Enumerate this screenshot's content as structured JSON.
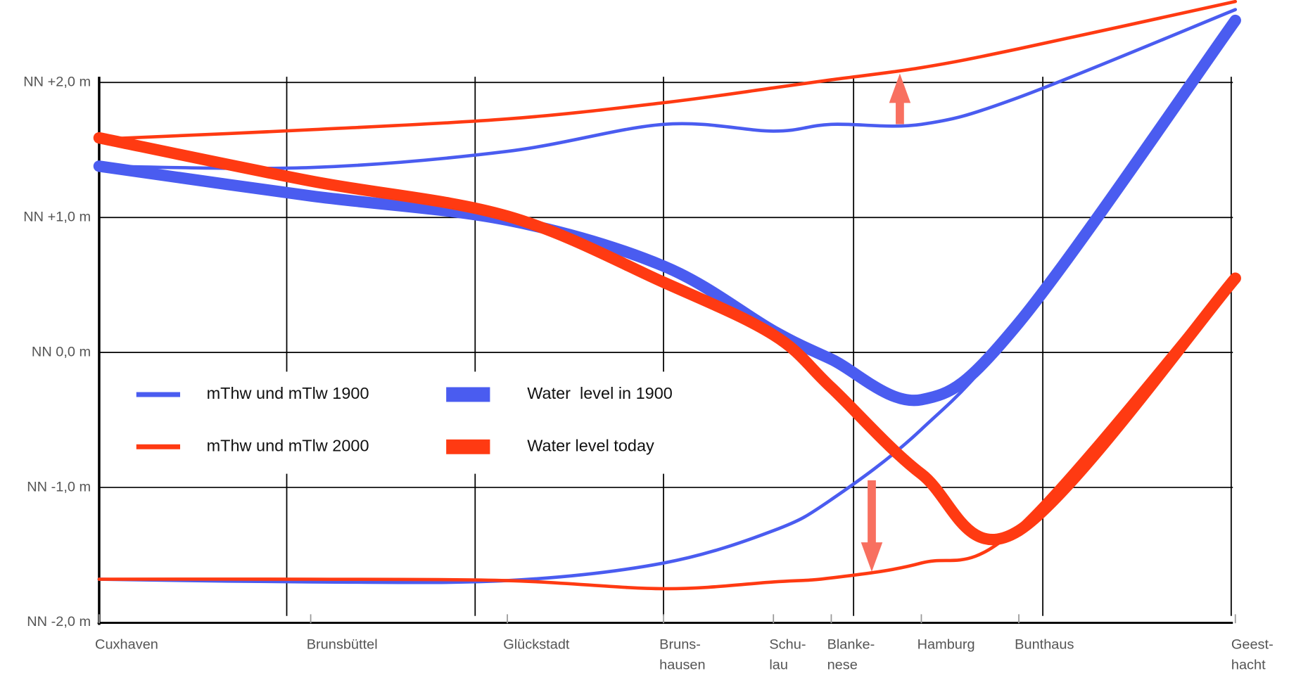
{
  "chart_data": {
    "type": "line",
    "categories": [
      "Cuxhaven",
      "Brunsbüttel",
      "Glückstadt",
      "Bruns-\nhausen",
      "Schu-\nlau",
      "Blanke-\nnese",
      "Hamburg",
      "Bunthaus",
      "Geest-\nhacht"
    ],
    "ylim": [
      -2,
      2
    ],
    "yticks": [
      {
        "value": -2,
        "label": "NN -2,0 m"
      },
      {
        "value": -1,
        "label": "NN -1,0 m"
      },
      {
        "value": 0,
        "label": "NN 0,0 m"
      },
      {
        "value": 1,
        "label": "NN +1,0 m"
      },
      {
        "value": 2,
        "label": "NN +2,0 m"
      }
    ],
    "grid": true,
    "series": [
      {
        "name": "mThw und mTlw 1900",
        "color": "#4a5cf0",
        "values": [
          1.38,
          1.37,
          1.49,
          1.69,
          1.64,
          1.69,
          1.69,
          1.89,
          2.54
        ],
        "low_values": [
          -1.68,
          -1.7,
          -1.69,
          -1.56,
          -1.32,
          -1.09,
          -0.57,
          0.22,
          2.49
        ]
      },
      {
        "name": "mThw und mTlw 2000",
        "color": "#ff3a12",
        "values": [
          1.58,
          1.65,
          1.73,
          1.85,
          1.96,
          2.02,
          2.11,
          2.25,
          2.6
        ],
        "low_values": [
          -1.68,
          -1.68,
          -1.69,
          -1.75,
          -1.7,
          -1.67,
          -1.56,
          -1.29,
          0.58
        ]
      },
      {
        "name": "Water  level in 1900",
        "color": "#4a5cf0",
        "thick": true,
        "values": [
          1.38,
          1.16,
          0.98,
          0.64,
          0.16,
          -0.05,
          -0.35,
          0.22,
          2.46
        ]
      },
      {
        "name": "Water level today",
        "color": "#ff3a12",
        "thick": true,
        "values": [
          1.59,
          1.27,
          1.01,
          0.52,
          0.13,
          -0.26,
          -0.9,
          -1.32,
          0.55
        ]
      }
    ]
  }
}
